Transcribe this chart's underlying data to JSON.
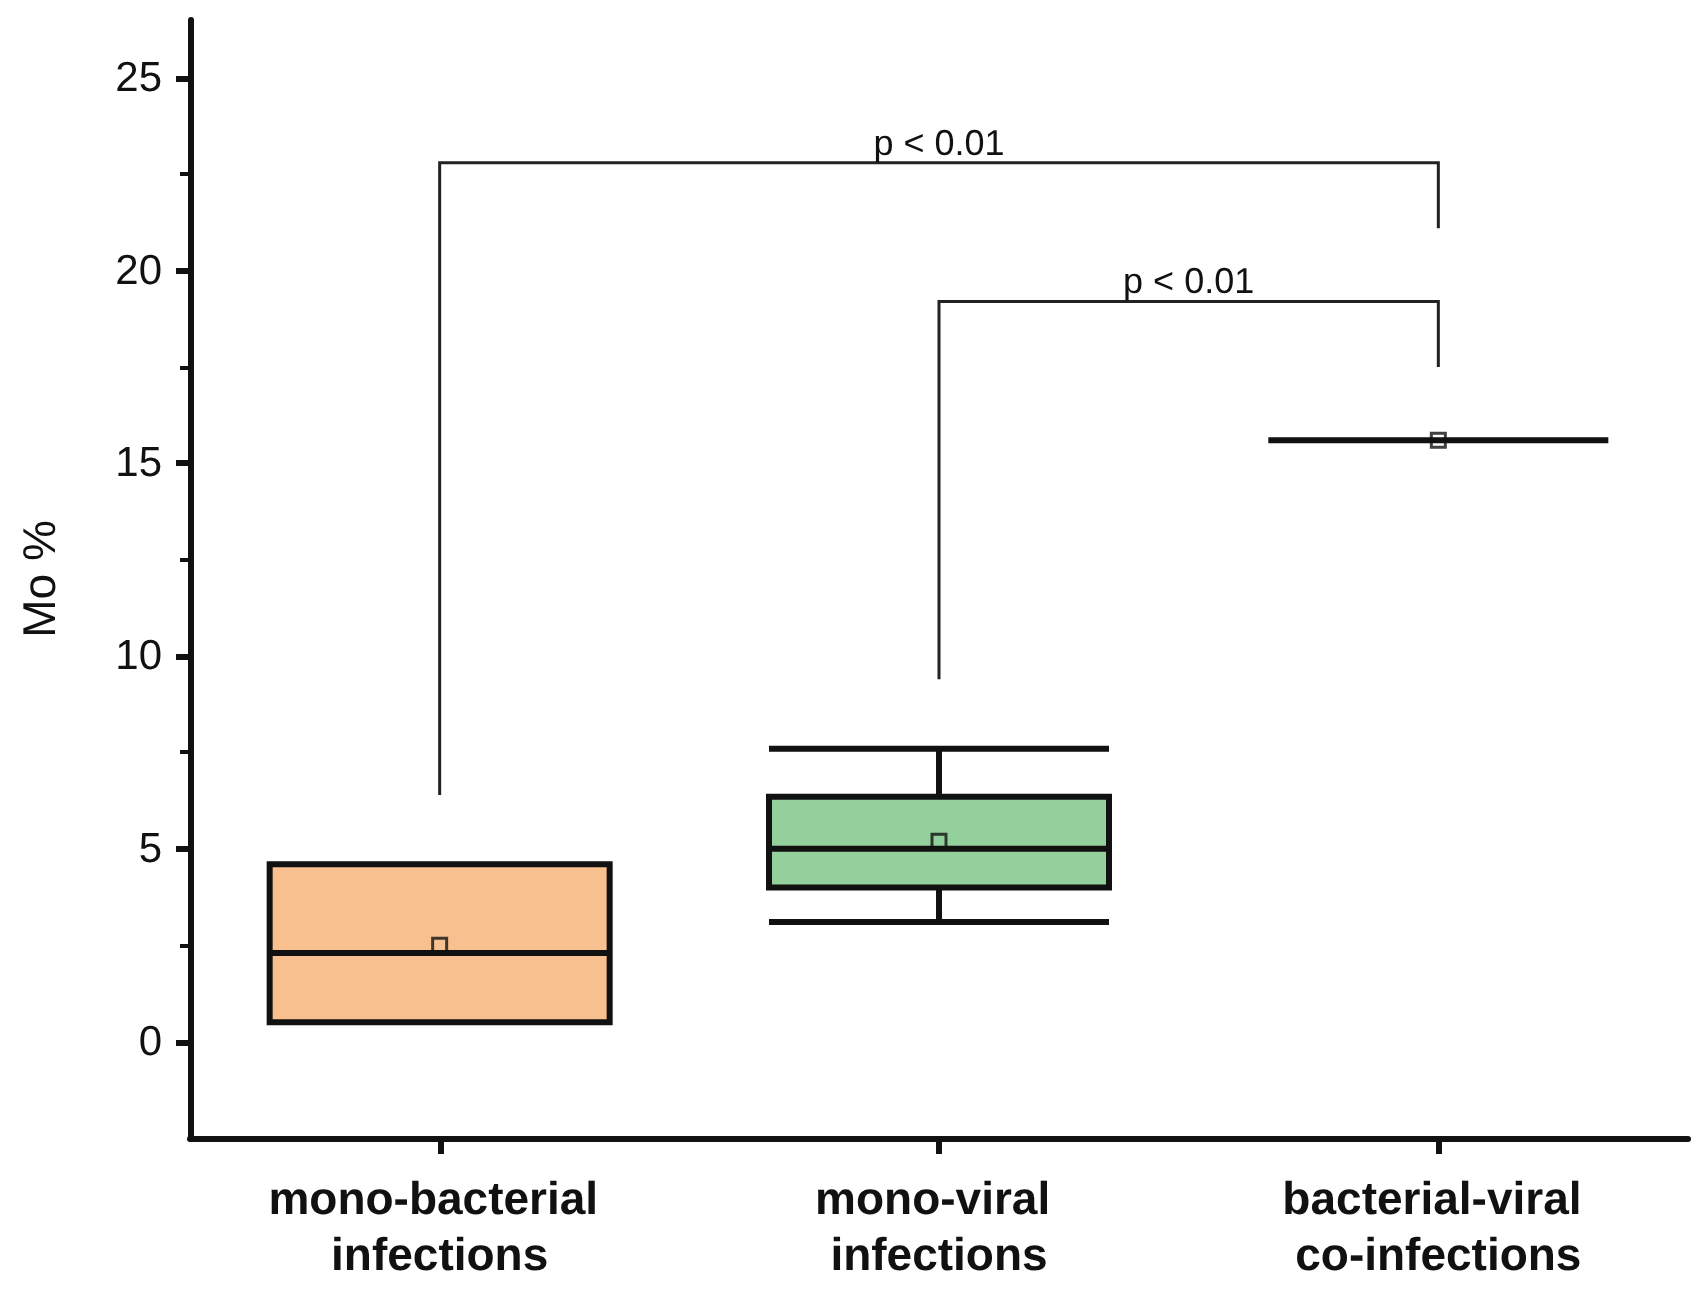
{
  "chart_data": {
    "type": "box",
    "ylabel": "Mo %",
    "categories": [
      "mono-bacterial infections",
      "mono-viral infections",
      "bacterial-viral co-infections"
    ],
    "boxes": [
      {
        "low": 0.5,
        "q1": 0.5,
        "median": 2.3,
        "q3": 4.6,
        "high": 4.6,
        "mean": 2.5
      },
      {
        "low": 3.1,
        "q1": 4.0,
        "median": 5.0,
        "q3": 6.35,
        "high": 7.6,
        "mean": 5.2
      },
      {
        "low": 15.6,
        "q1": 15.6,
        "median": 15.6,
        "q3": 15.6,
        "high": 15.6,
        "mean": 15.6
      }
    ],
    "colors": [
      "#f8c08e",
      "#94d09c",
      "#111111"
    ],
    "ylim": [
      -2.5,
      26.5
    ],
    "yticks": [
      0,
      5,
      10,
      15,
      20,
      25
    ],
    "annotations": [
      "p < 0.01",
      "p < 0.01"
    ],
    "grid": false
  }
}
